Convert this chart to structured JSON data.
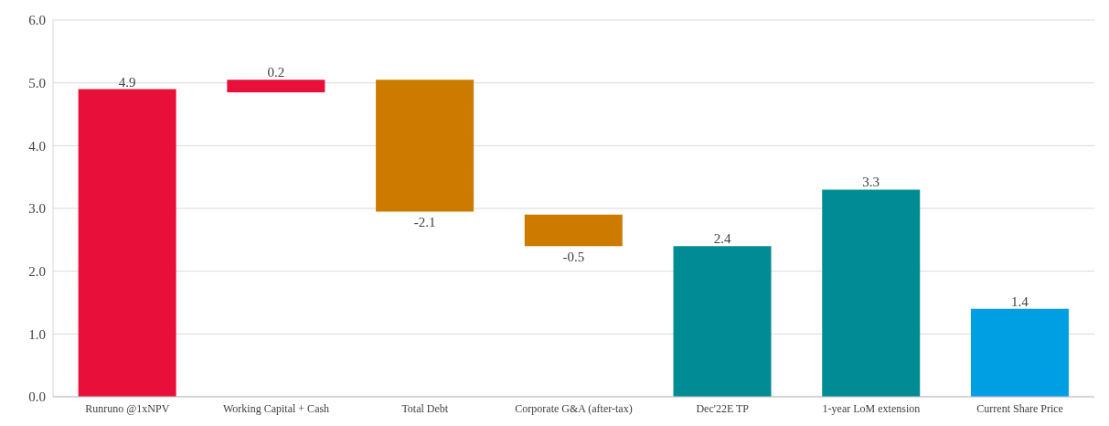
{
  "chart_data": {
    "type": "bar",
    "categories": [
      "Runruno @1xNPV",
      "Working Capital + Cash",
      "Total Debt",
      "Corporate G&A (after-tax)",
      "Dec'22E TP",
      "1-year LoM extension",
      "Current Share Price"
    ],
    "values": [
      4.9,
      0.2,
      -2.1,
      -0.5,
      2.4,
      3.3,
      1.4
    ],
    "base": [
      0,
      4.85,
      5.05,
      2.9,
      0,
      0,
      0
    ],
    "colors": [
      "#e8103a",
      "#e8103a",
      "#cc7a00",
      "#cc7a00",
      "#008b95",
      "#008b95",
      "#009fe3"
    ],
    "data_labels": true,
    "ylim": [
      0,
      6
    ],
    "yticks": [
      {
        "value": 0,
        "label": "0.0"
      },
      {
        "value": 1,
        "label": "1.0"
      },
      {
        "value": 2,
        "label": "2.0"
      },
      {
        "value": 3,
        "label": "3.0"
      },
      {
        "value": 4,
        "label": "4.0"
      },
      {
        "value": 5,
        "label": "5.0"
      },
      {
        "value": 6,
        "label": "6.0"
      }
    ],
    "grid": "y",
    "legend": false
  }
}
